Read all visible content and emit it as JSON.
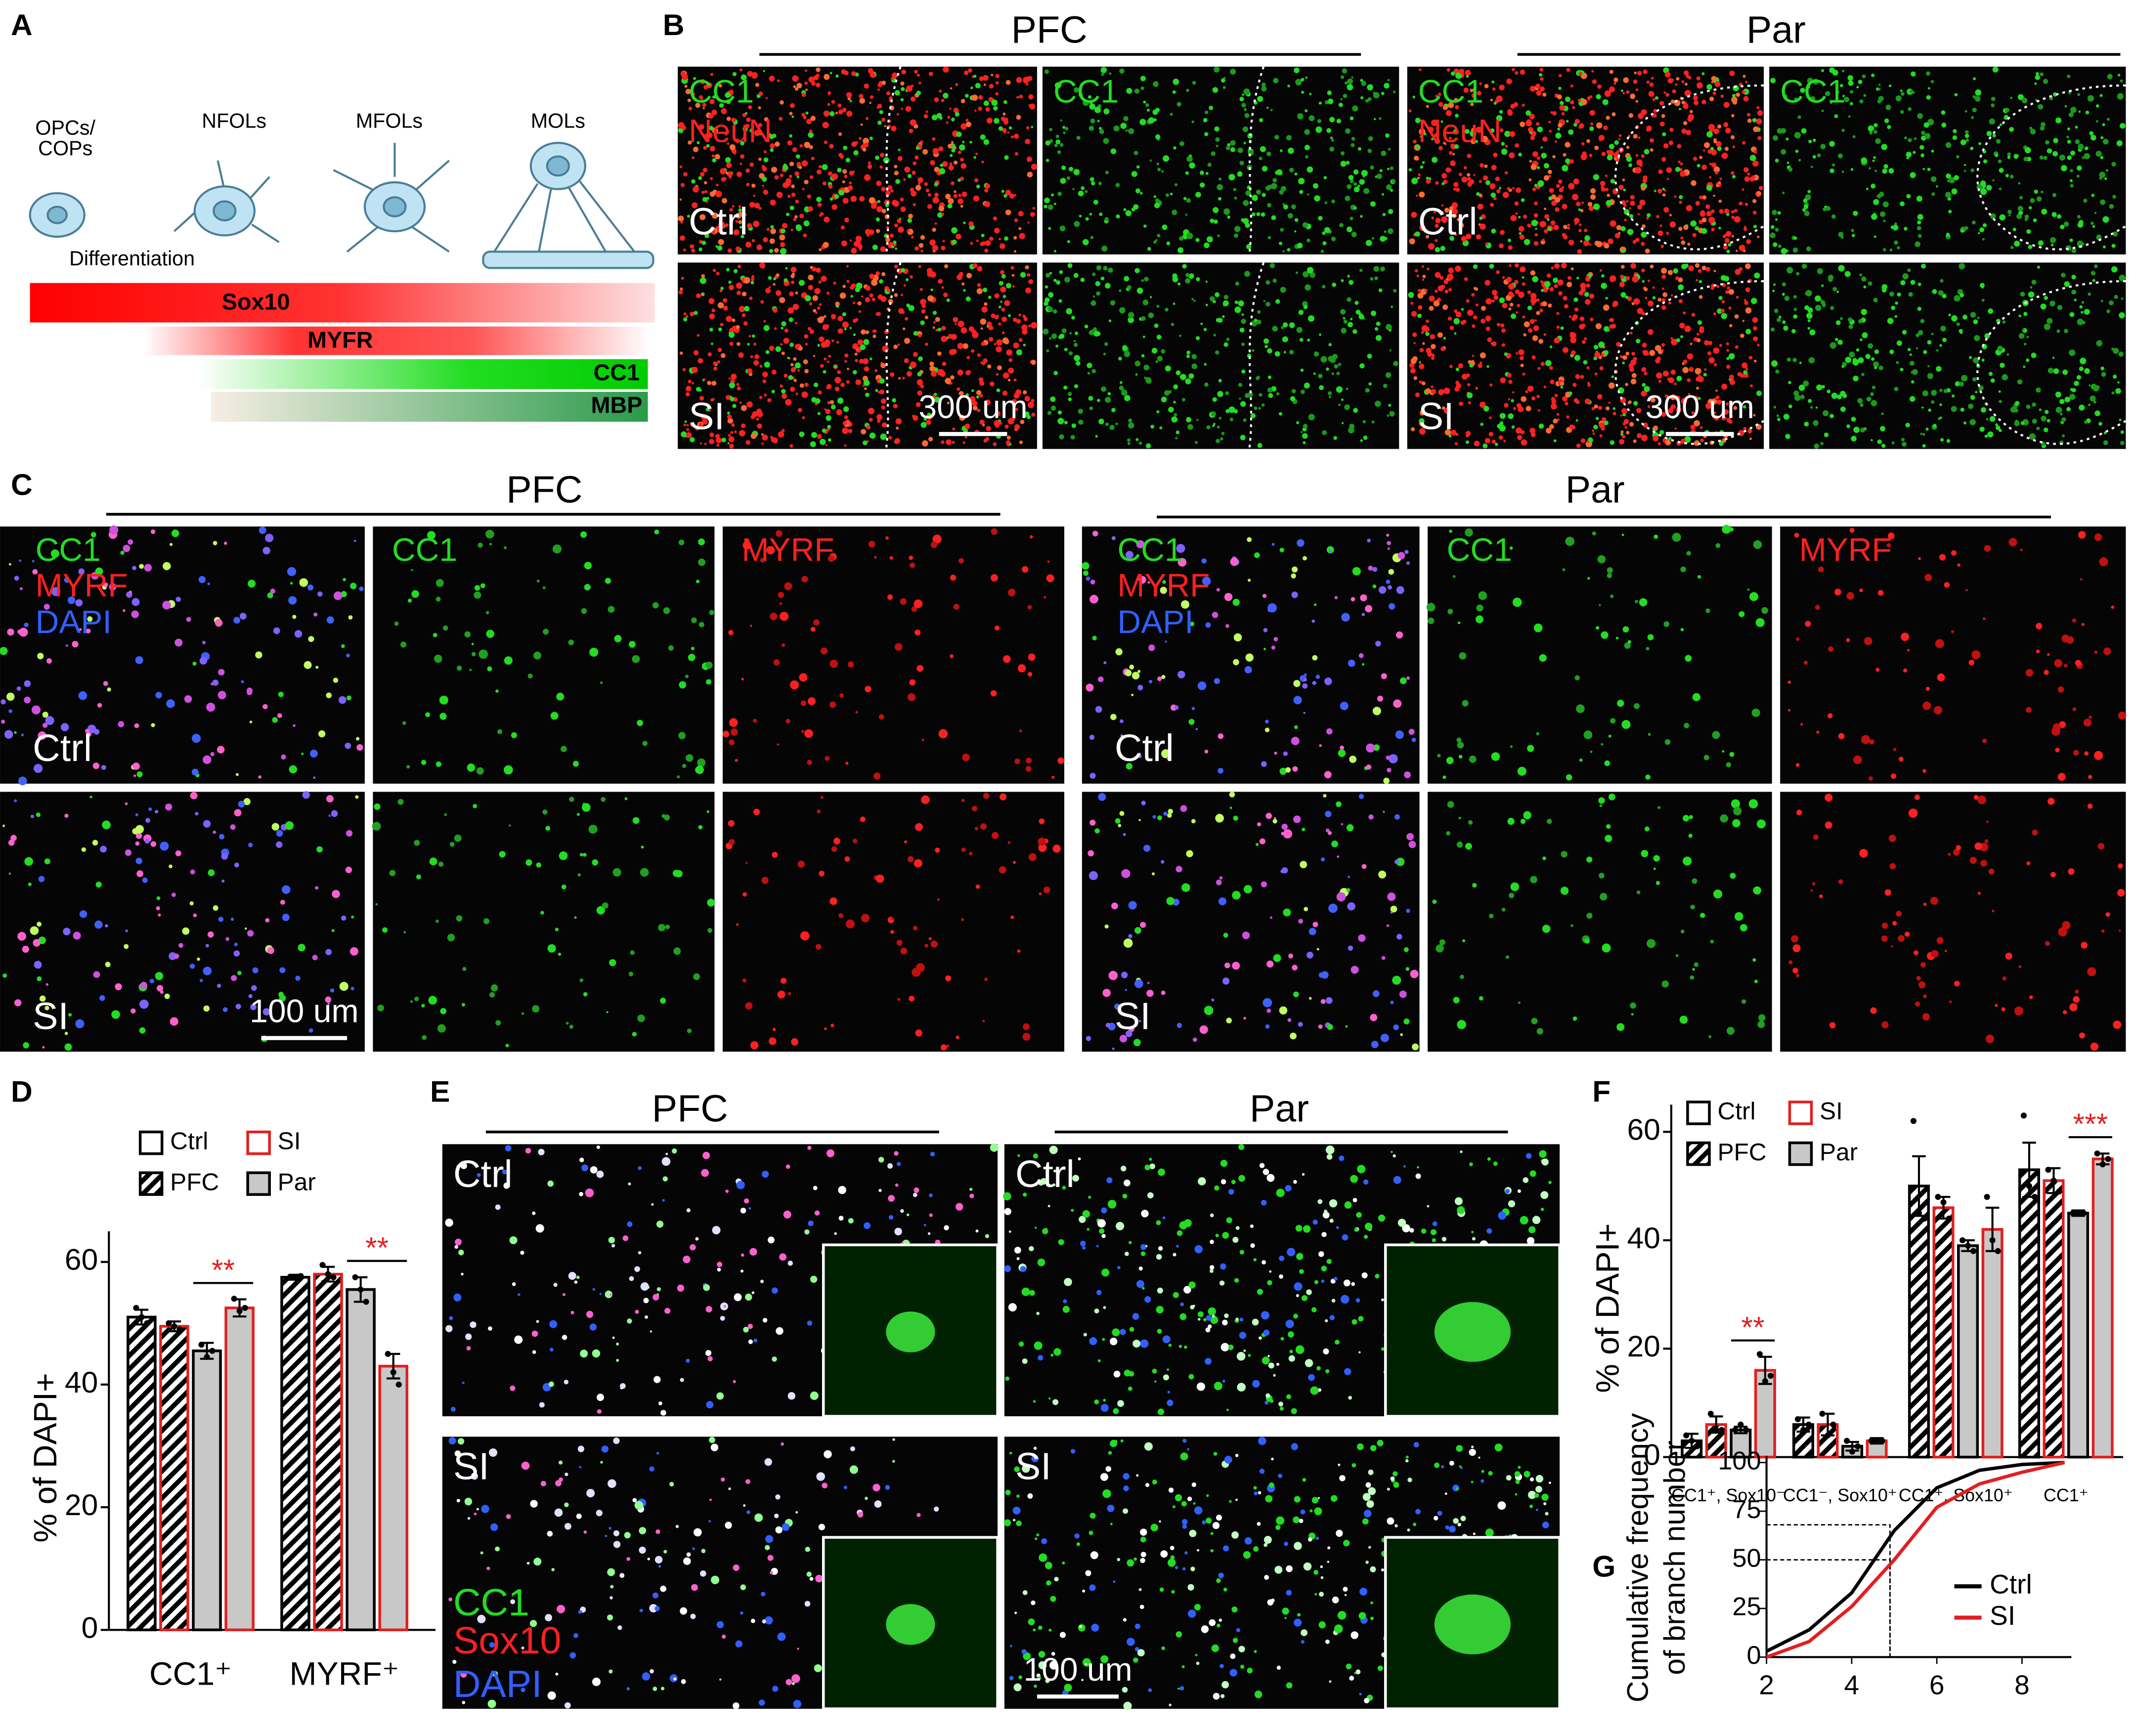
{
  "panel_labels": [
    "A",
    "B",
    "C",
    "D",
    "E",
    "F",
    "G"
  ],
  "panel_a": {
    "stages": [
      [
        "OPCs/",
        "COPs"
      ],
      [
        "NFOLs"
      ],
      [
        "MFOLs"
      ],
      [
        "MOLs"
      ]
    ],
    "arrow_label": "Differentiation",
    "markers": [
      "Sox10",
      "MYFR",
      "CC1",
      "MBP"
    ]
  },
  "panel_b": {
    "regions": [
      "PFC",
      "Par"
    ],
    "merge_channels": [
      "CC1",
      "NeuN"
    ],
    "single_channel": "CC1",
    "conditions": [
      "Ctrl",
      "SI"
    ],
    "scale_bar": "300 um"
  },
  "panel_c": {
    "regions": [
      "PFC",
      "Par"
    ],
    "merge_channels": [
      "CC1",
      "MYRF",
      "DAPI"
    ],
    "single_channels": [
      "CC1",
      "MYRF"
    ],
    "conditions": [
      "Ctrl",
      "SI"
    ],
    "scale_bar": "100 um"
  },
  "panel_e": {
    "regions": [
      "PFC",
      "Par"
    ],
    "conditions": [
      "Ctrl",
      "SI"
    ],
    "channels": [
      "CC1",
      "Sox10",
      "DAPI"
    ],
    "scale_bar": "100 um"
  },
  "chart_data": [
    {
      "type": "bar",
      "ylabel": "% of DAPI+",
      "categories": [
        "CC1⁺",
        "MYRF⁺"
      ],
      "ylim": [
        0,
        65
      ],
      "yticks": [
        0,
        20,
        40,
        60
      ],
      "legend": [
        {
          "label": "Ctrl",
          "stroke": "#000000"
        },
        {
          "label": "SI",
          "stroke": "#e02020"
        },
        {
          "label": "PFC",
          "fill": "hatch"
        },
        {
          "label": "Par",
          "fill": "#c8c8c8"
        }
      ],
      "series": [
        {
          "region": "PFC",
          "condition": "Ctrl",
          "values": [
            51,
            57.5
          ],
          "errors": [
            1.2,
            0.4
          ],
          "points": [
            [
              52.5,
              51,
              50
            ],
            [
              57.5,
              57.5,
              57.7
            ]
          ]
        },
        {
          "region": "PFC",
          "condition": "SI",
          "values": [
            49.5,
            58
          ],
          "errors": [
            0.8,
            1.2
          ],
          "points": [
            [
              50,
              49.5,
              49
            ],
            [
              59.5,
              58,
              57.5
            ]
          ]
        },
        {
          "region": "Par",
          "condition": "Ctrl",
          "values": [
            45.5,
            55.5
          ],
          "errors": [
            1.3,
            2
          ],
          "points": [
            [
              46.5,
              44.5,
              45.5
            ],
            [
              57.5,
              55.5,
              53.5
            ]
          ]
        },
        {
          "region": "Par",
          "condition": "SI",
          "values": [
            52.5,
            43
          ],
          "errors": [
            1.4,
            2
          ],
          "points": [
            [
              54,
              52,
              52.5
            ],
            [
              45,
              42,
              40
            ]
          ]
        }
      ],
      "annotations": [
        {
          "text": "**",
          "category": 0,
          "from": 2,
          "to": 3
        },
        {
          "text": "**",
          "category": 1,
          "from": 2,
          "to": 3
        }
      ]
    },
    {
      "type": "bar",
      "ylabel": "% of DAPI+",
      "categories": [
        "CC1⁺, Sox10⁻",
        "CC1⁻, Sox10⁺",
        "CC1⁺, Sox10⁺",
        "CC1⁺"
      ],
      "ylim": [
        0,
        65
      ],
      "yticks": [
        0,
        20,
        40,
        60
      ],
      "legend": [
        {
          "label": "Ctrl",
          "stroke": "#000000"
        },
        {
          "label": "SI",
          "stroke": "#e02020"
        },
        {
          "label": "PFC",
          "fill": "hatch"
        },
        {
          "label": "Par",
          "fill": "#c8c8c8"
        }
      ],
      "series": [
        {
          "region": "PFC",
          "condition": "Ctrl",
          "values": [
            3,
            6,
            50,
            53
          ],
          "errors": [
            1.3,
            1.3,
            5.5,
            5
          ],
          "points": [
            [
              4,
              3,
              2
            ],
            [
              7,
              5,
              6
            ],
            [
              62,
              45,
              44
            ],
            [
              63,
              50,
              48
            ]
          ]
        },
        {
          "region": "PFC",
          "condition": "SI",
          "values": [
            6,
            6,
            46,
            51
          ],
          "errors": [
            1.5,
            2,
            2,
            2.3
          ],
          "points": [
            [
              8,
              5,
              5
            ],
            [
              8,
              4,
              6
            ],
            [
              48,
              47,
              44
            ],
            [
              53,
              51,
              49
            ]
          ]
        },
        {
          "region": "Par",
          "condition": "Ctrl",
          "values": [
            5,
            2,
            39,
            45
          ],
          "errors": [
            0.6,
            0.8,
            1,
            0.5
          ],
          "points": [
            [
              5,
              6,
              5
            ],
            [
              3,
              1,
              2
            ],
            [
              40,
              39,
              38
            ],
            [
              45,
              45,
              45
            ]
          ]
        },
        {
          "region": "Par",
          "condition": "SI",
          "values": [
            16,
            3,
            42,
            55
          ],
          "errors": [
            2.5,
            0.5,
            4,
            1
          ],
          "points": [
            [
              19,
              14,
              15
            ],
            [
              3,
              3,
              3
            ],
            [
              48,
              40,
              38
            ],
            [
              56,
              54,
              55
            ]
          ]
        }
      ],
      "annotations": [
        {
          "text": "**",
          "category": 0,
          "from": 2,
          "to": 3
        },
        {
          "text": "***",
          "category": 3,
          "from": 2,
          "to": 3
        }
      ]
    },
    {
      "type": "line",
      "ylabel": [
        "Cumulative frequency",
        "of branch number"
      ],
      "x": [
        2,
        3,
        4,
        5,
        6,
        7,
        8,
        9
      ],
      "xlim": [
        2,
        9
      ],
      "xticks": [
        2,
        4,
        6,
        8
      ],
      "ylim": [
        0,
        100
      ],
      "yticks": [
        0,
        25,
        50,
        75,
        100
      ],
      "legend_position": "lower right",
      "series": [
        {
          "name": "Ctrl",
          "color": "#000000",
          "values": [
            3,
            14,
            33,
            65,
            87,
            96,
            99,
            100
          ]
        },
        {
          "name": "SI",
          "color": "#e02020",
          "values": [
            0,
            8,
            26,
            50,
            77,
            89,
            95,
            100
          ]
        }
      ],
      "guides": [
        {
          "x": 4.9,
          "y": 68
        },
        {
          "x": 4.9,
          "y": 50
        }
      ]
    }
  ]
}
